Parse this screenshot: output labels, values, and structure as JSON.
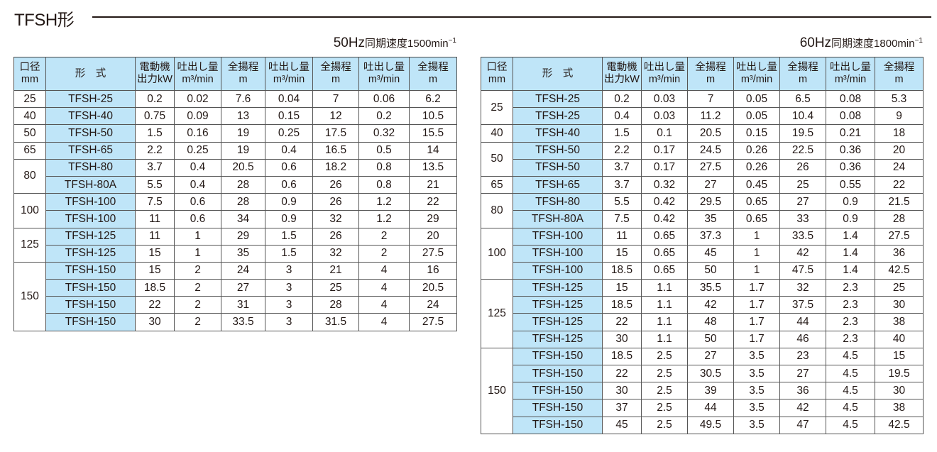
{
  "title": "TFSH形",
  "tables": [
    {
      "caption_hz": "50Hz",
      "caption_text": "同期速度1500min",
      "caption_sup": "−1",
      "headers": {
        "size": [
          "口径",
          "mm"
        ],
        "model": "形　式",
        "kw": [
          "電動機",
          "出力kW"
        ],
        "flow": [
          "吐出し量",
          "m³/min"
        ],
        "head": [
          "全揚程",
          "m"
        ]
      },
      "groups": [
        {
          "size": "25",
          "rows": [
            [
              "TFSH-25",
              "0.2",
              "0.02",
              "7.6",
              "0.04",
              "7",
              "0.06",
              "6.2"
            ]
          ]
        },
        {
          "size": "40",
          "rows": [
            [
              "TFSH-40",
              "0.75",
              "0.09",
              "13",
              "0.15",
              "12",
              "0.2",
              "10.5"
            ]
          ]
        },
        {
          "size": "50",
          "rows": [
            [
              "TFSH-50",
              "1.5",
              "0.16",
              "19",
              "0.25",
              "17.5",
              "0.32",
              "15.5"
            ]
          ]
        },
        {
          "size": "65",
          "rows": [
            [
              "TFSH-65",
              "2.2",
              "0.25",
              "19",
              "0.4",
              "16.5",
              "0.5",
              "14"
            ]
          ]
        },
        {
          "size": "80",
          "rows": [
            [
              "TFSH-80",
              "3.7",
              "0.4",
              "20.5",
              "0.6",
              "18.2",
              "0.8",
              "13.5"
            ],
            [
              "TFSH-80A",
              "5.5",
              "0.4",
              "28",
              "0.6",
              "26",
              "0.8",
              "21"
            ]
          ]
        },
        {
          "size": "100",
          "rows": [
            [
              "TFSH-100",
              "7.5",
              "0.6",
              "28",
              "0.9",
              "26",
              "1.2",
              "22"
            ],
            [
              "TFSH-100",
              "11",
              "0.6",
              "34",
              "0.9",
              "32",
              "1.2",
              "29"
            ]
          ]
        },
        {
          "size": "125",
          "rows": [
            [
              "TFSH-125",
              "11",
              "1",
              "29",
              "1.5",
              "26",
              "2",
              "20"
            ],
            [
              "TFSH-125",
              "15",
              "1",
              "35",
              "1.5",
              "32",
              "2",
              "27.5"
            ]
          ]
        },
        {
          "size": "150",
          "rows": [
            [
              "TFSH-150",
              "15",
              "2",
              "24",
              "3",
              "21",
              "4",
              "16"
            ],
            [
              "TFSH-150",
              "18.5",
              "2",
              "27",
              "3",
              "25",
              "4",
              "20.5"
            ],
            [
              "TFSH-150",
              "22",
              "2",
              "31",
              "3",
              "28",
              "4",
              "24"
            ],
            [
              "TFSH-150",
              "30",
              "2",
              "33.5",
              "3",
              "31.5",
              "4",
              "27.5"
            ]
          ]
        }
      ]
    },
    {
      "caption_hz": "60Hz",
      "caption_text": "同期速度1800min",
      "caption_sup": "−1",
      "headers": {
        "size": [
          "口径",
          "mm"
        ],
        "model": "形　式",
        "kw": [
          "電動機",
          "出力kW"
        ],
        "flow": [
          "吐出し量",
          "m³/min"
        ],
        "head": [
          "全揚程",
          "m"
        ]
      },
      "groups": [
        {
          "size": "25",
          "rows": [
            [
              "TFSH-25",
              "0.2",
              "0.03",
              "7",
              "0.05",
              "6.5",
              "0.08",
              "5.3"
            ],
            [
              "TFSH-25",
              "0.4",
              "0.03",
              "11.2",
              "0.05",
              "10.4",
              "0.08",
              "9"
            ]
          ]
        },
        {
          "size": "40",
          "rows": [
            [
              "TFSH-40",
              "1.5",
              "0.1",
              "20.5",
              "0.15",
              "19.5",
              "0.21",
              "18"
            ]
          ]
        },
        {
          "size": "50",
          "rows": [
            [
              "TFSH-50",
              "2.2",
              "0.17",
              "24.5",
              "0.26",
              "22.5",
              "0.36",
              "20"
            ],
            [
              "TFSH-50",
              "3.7",
              "0.17",
              "27.5",
              "0.26",
              "26",
              "0.36",
              "24"
            ]
          ]
        },
        {
          "size": "65",
          "rows": [
            [
              "TFSH-65",
              "3.7",
              "0.32",
              "27",
              "0.45",
              "25",
              "0.55",
              "22"
            ]
          ]
        },
        {
          "size": "80",
          "rows": [
            [
              "TFSH-80",
              "5.5",
              "0.42",
              "29.5",
              "0.65",
              "27",
              "0.9",
              "21.5"
            ],
            [
              "TFSH-80A",
              "7.5",
              "0.42",
              "35",
              "0.65",
              "33",
              "0.9",
              "28"
            ]
          ]
        },
        {
          "size": "100",
          "rows": [
            [
              "TFSH-100",
              "11",
              "0.65",
              "37.3",
              "1",
              "33.5",
              "1.4",
              "27.5"
            ],
            [
              "TFSH-100",
              "15",
              "0.65",
              "45",
              "1",
              "42",
              "1.4",
              "36"
            ],
            [
              "TFSH-100",
              "18.5",
              "0.65",
              "50",
              "1",
              "47.5",
              "1.4",
              "42.5"
            ]
          ]
        },
        {
          "size": "125",
          "rows": [
            [
              "TFSH-125",
              "15",
              "1.1",
              "35.5",
              "1.7",
              "32",
              "2.3",
              "25"
            ],
            [
              "TFSH-125",
              "18.5",
              "1.1",
              "42",
              "1.7",
              "37.5",
              "2.3",
              "30"
            ],
            [
              "TFSH-125",
              "22",
              "1.1",
              "48",
              "1.7",
              "44",
              "2.3",
              "38"
            ],
            [
              "TFSH-125",
              "30",
              "1.1",
              "50",
              "1.7",
              "46",
              "2.3",
              "40"
            ]
          ]
        },
        {
          "size": "150",
          "rows": [
            [
              "TFSH-150",
              "18.5",
              "2.5",
              "27",
              "3.5",
              "23",
              "4.5",
              "15"
            ],
            [
              "TFSH-150",
              "22",
              "2.5",
              "30.5",
              "3.5",
              "27",
              "4.5",
              "19.5"
            ],
            [
              "TFSH-150",
              "30",
              "2.5",
              "39",
              "3.5",
              "36",
              "4.5",
              "30"
            ],
            [
              "TFSH-150",
              "37",
              "2.5",
              "44",
              "3.5",
              "42",
              "4.5",
              "38"
            ],
            [
              "TFSH-150",
              "45",
              "2.5",
              "49.5",
              "3.5",
              "47",
              "4.5",
              "42.5"
            ]
          ]
        }
      ]
    }
  ]
}
